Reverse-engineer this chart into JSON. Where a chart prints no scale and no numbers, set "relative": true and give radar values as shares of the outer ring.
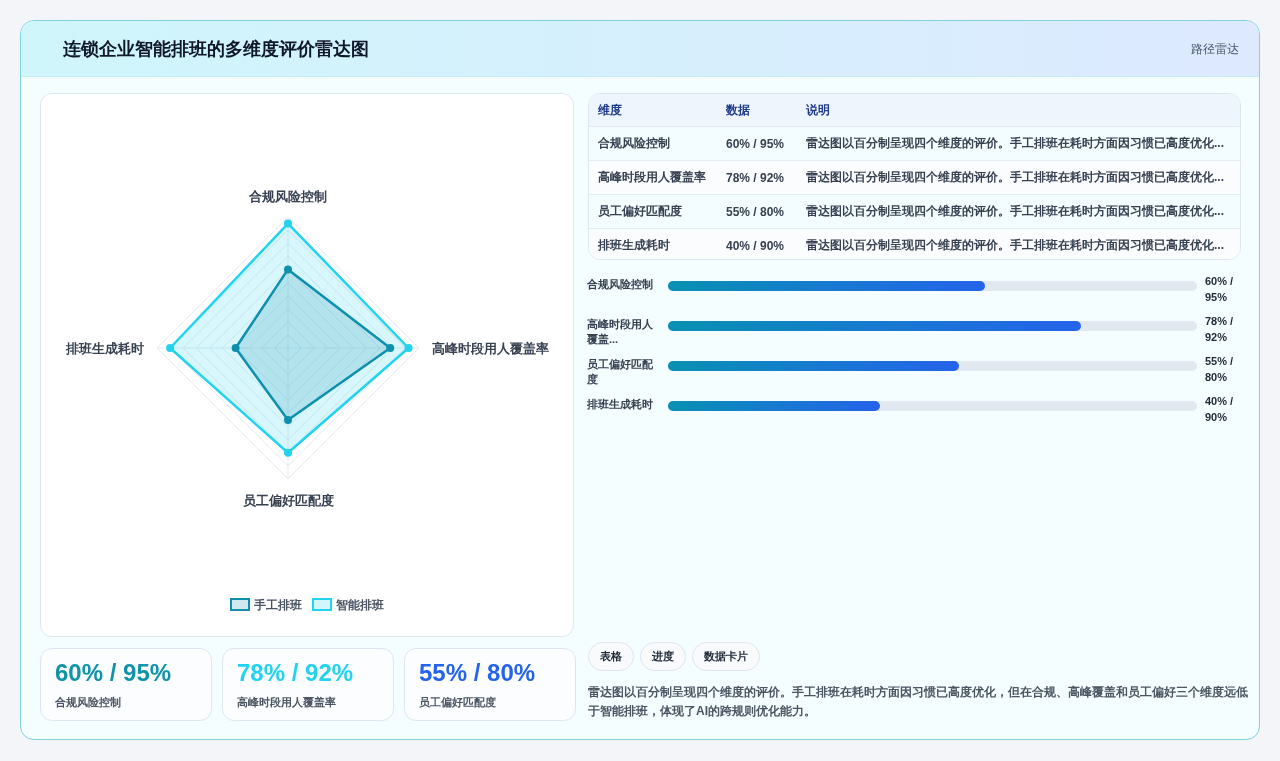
{
  "chart_data": [
    {
      "type": "other",
      "title": "连锁企业智能排班的多维度评价雷达图",
      "annotations": [
        "路径雷达"
      ]
    },
    {
      "type": "radar",
      "categories": [
        "合规风险控制",
        "高峰时段用人覆盖率",
        "员工偏好匹配度",
        "排班生成耗时"
      ],
      "relative": true,
      "legend": "bottom",
      "marker": "circle",
      "series": [
        {
          "name": "手工排班",
          "color": "#0e8fae",
          "values": [
            0.6,
            0.78,
            0.55,
            0.4
          ]
        },
        {
          "name": "智能排班",
          "color": "#22d3ee",
          "values": [
            0.95,
            0.92,
            0.8,
            0.9
          ]
        }
      ]
    },
    {
      "type": "other",
      "annotations": [
        "维度",
        "数据",
        "说明",
        "合规风险控制",
        "60% / 95%",
        "雷达图以百分制呈现四个维度的评价。手工排班在耗时方面因习惯已高度优化...",
        "高峰时段用人覆盖率",
        "78% / 92%",
        "雷达图以百分制呈现四个维度的评价。手工排班在耗时方面因习惯已高度优化...",
        "员工偏好匹配度",
        "55% / 80%",
        "雷达图以百分制呈现四个维度的评价。手工排班在耗时方面因习惯已高度优化...",
        "排班生成耗时",
        "40% / 90%",
        "雷达图以百分制呈现四个维度的评价。手工排班在耗时方面因习惯已高度优化..."
      ]
    },
    {
      "type": "bar",
      "orientation": "horizontal",
      "xlim": [
        0,
        100
      ],
      "categories": [
        "合规风险控制",
        "高峰时段用人覆盖...",
        "员工偏好匹配度",
        "排班生成耗时"
      ],
      "color": "#0891b2",
      "values": [
        60,
        78,
        55,
        40
      ],
      "value_labels": [
        "60% / 95%",
        "78% / 92%",
        "55% / 80%",
        "40% / 90%"
      ]
    },
    {
      "type": "other",
      "annotations": [
        "60% / 95%",
        "合规风险控制",
        "78% / 92%",
        "高峰时段用人覆盖率",
        "55% / 80%",
        "员工偏好匹配度"
      ]
    },
    {
      "type": "other",
      "annotations": [
        "表格",
        "进度",
        "数据卡片",
        "雷达图以百分制呈现四个维度的评价。手工排班在耗时方面因习惯已高度优化，但在合规、高峰覆盖和员工偏好三个维度远低于智能排班，体现了AI的跨规则优化能力。"
      ]
    }
  ]
}
